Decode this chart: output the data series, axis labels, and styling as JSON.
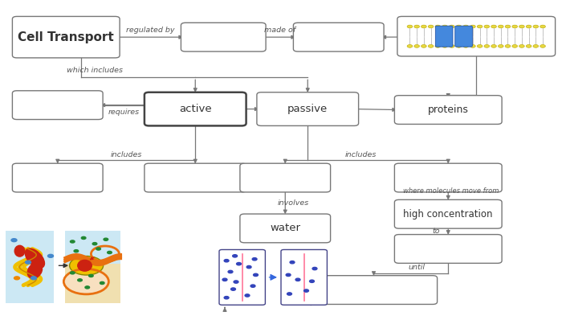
{
  "background_color": "#ffffff",
  "connector_color": "#777777",
  "text_color": "#333333",
  "box_color": "#777777",
  "active_box_color": "#444444",
  "CT": [
    0.03,
    0.825,
    0.175,
    0.115
  ],
  "B1": [
    0.33,
    0.845,
    0.135,
    0.075
  ],
  "B2": [
    0.53,
    0.845,
    0.145,
    0.075
  ],
  "B3": [
    0.715,
    0.83,
    0.265,
    0.11
  ],
  "BL": [
    0.03,
    0.63,
    0.145,
    0.075
  ],
  "AC": [
    0.265,
    0.61,
    0.165,
    0.09
  ],
  "PA": [
    0.465,
    0.61,
    0.165,
    0.09
  ],
  "PR": [
    0.71,
    0.615,
    0.175,
    0.075
  ],
  "AS1": [
    0.03,
    0.4,
    0.145,
    0.075
  ],
  "AS2": [
    0.265,
    0.4,
    0.165,
    0.075
  ],
  "PS1": [
    0.435,
    0.4,
    0.145,
    0.075
  ],
  "PS2": [
    0.71,
    0.4,
    0.175,
    0.075
  ],
  "WA": [
    0.435,
    0.24,
    0.145,
    0.075
  ],
  "HC": [
    0.71,
    0.285,
    0.175,
    0.075
  ],
  "LC": [
    0.71,
    0.175,
    0.175,
    0.075
  ],
  "UB": [
    0.56,
    0.045,
    0.21,
    0.075
  ]
}
